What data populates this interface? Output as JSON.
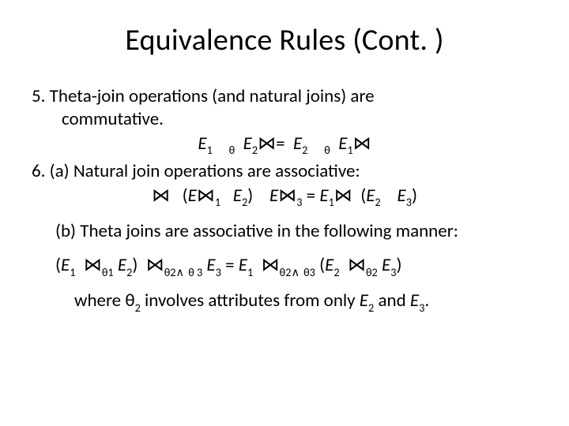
{
  "title": "Equivalence Rules (Cont. )",
  "item5_line1": "5. Theta-join operations (and natural joins) are",
  "item5_line2": "commutative.",
  "eq5_E1": "E",
  "eq5_E1s": "1",
  "eq5_th1_a": "θ",
  "eq5_E2a": "E",
  "eq5_E2as": "2",
  "eq5_join1": "⋈",
  "eq5_eq": "=",
  "eq5_E2b": "E",
  "eq5_E2bs": "2",
  "eq5_th1_b": "θ",
  "eq5_E1b": "E",
  "eq5_E1bs": "1",
  "eq5_join2": "⋈",
  "item6a": "6. (a) Natural join operations are associative:",
  "eq6a_j1": "⋈",
  "eq6a_lp": "(",
  "eq6a_E1": "E",
  "eq6a_E1s": "1",
  "eq6a_j2": "⋈",
  "eq6a_E2": "E",
  "eq6a_E2s": "2",
  "eq6a_rp": ")",
  "eq6a_E3": "E",
  "eq6a_E3s": "3",
  "eq6a_j3": "⋈",
  "eq6a_eq": " = ",
  "eq6a_E1b": "E",
  "eq6a_E1bs": "1",
  "eq6a_j4": "⋈",
  "eq6a_lp2": "(",
  "eq6a_E2b": "E",
  "eq6a_E2bs": "2",
  "eq6a_E3b": "E",
  "eq6a_E3bs": "3",
  "eq6a_rp2": ")",
  "item6b": "(b) Theta joins are associative in the following manner:",
  "eq6b_lp": "(",
  "eq6b_E1": "E",
  "eq6b_E1s": "1",
  "eq6b_j1": "⋈",
  "eq6b_th1": "θ1",
  "eq6b_E2": "E",
  "eq6b_E2s": "2",
  "eq6b_rp": ")",
  "eq6b_j2": "⋈",
  "eq6b_th2a": "θ2",
  "eq6b_and": "∧",
  "eq6b_th3": "θ 3",
  "eq6b_E3": "E",
  "eq6b_E3s": "3",
  "eq6b_eq": " = ",
  "eq6b_E1b": "E",
  "eq6b_E1bs": "1",
  "eq6b_j3": "⋈",
  "eq6b_th2b": "θ2",
  "eq6b_and2": "∧",
  "eq6b_th3b": "θ3",
  "eq6b_lp2": "(",
  "eq6b_E2b": "E",
  "eq6b_E2bs": "2",
  "eq6b_j4": "⋈",
  "eq6b_th2c": "θ2",
  "eq6b_E3b": "E",
  "eq6b_E3bs": "3",
  "eq6b_rp2": ")",
  "note_a": "where ",
  "note_th": "θ",
  "note_2": "2",
  "note_b": " involves attributes from only ",
  "note_E2": "E",
  "note_E2s": "2",
  "note_c": " and ",
  "note_E3": "E",
  "note_E3s": "3",
  "note_d": "."
}
